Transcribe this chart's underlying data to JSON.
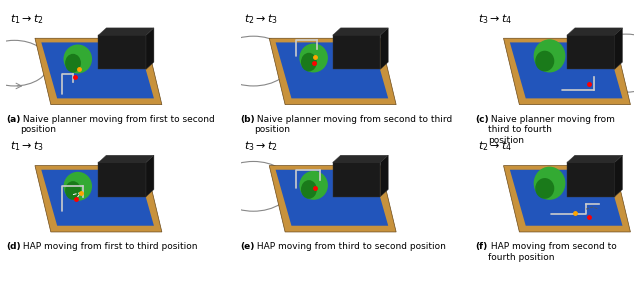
{
  "figsize": [
    6.4,
    3.08
  ],
  "dpi": 100,
  "background_color": "#ffffff",
  "nrows": 2,
  "ncols": 3,
  "panel_labels": [
    "a",
    "b",
    "c",
    "d",
    "e",
    "f"
  ],
  "top_titles": [
    "t_1 \\rightarrow t_2",
    "t_2 \\rightarrow t_3",
    "t_3 \\rightarrow t_4",
    "t_1 \\rightarrow t_3",
    "t_3 \\rightarrow t_2",
    "t_2 \\rightarrow t_4"
  ],
  "captions": [
    "(a) Naive planner moving from first to second\nposition",
    "(b) Naive planner moving from second to third\nposition",
    "(c) Naive planner moving from third to fourth\nposition",
    "(d) HAP moving from first to third position",
    "(e) HAP moving from third to second position",
    "(f) HAP moving from second to fourth position"
  ],
  "caption_fontsize": 6.5,
  "title_fontsize": 8,
  "scene_bg": "#e8e8e8",
  "board_color": "#c8923c",
  "blue_area": "#2255bb",
  "green_blob": "#33aa33",
  "dark_green": "#1a7a1a",
  "black_box": "#222222",
  "circle_color": "#888888",
  "arm_color": "#cccccc"
}
